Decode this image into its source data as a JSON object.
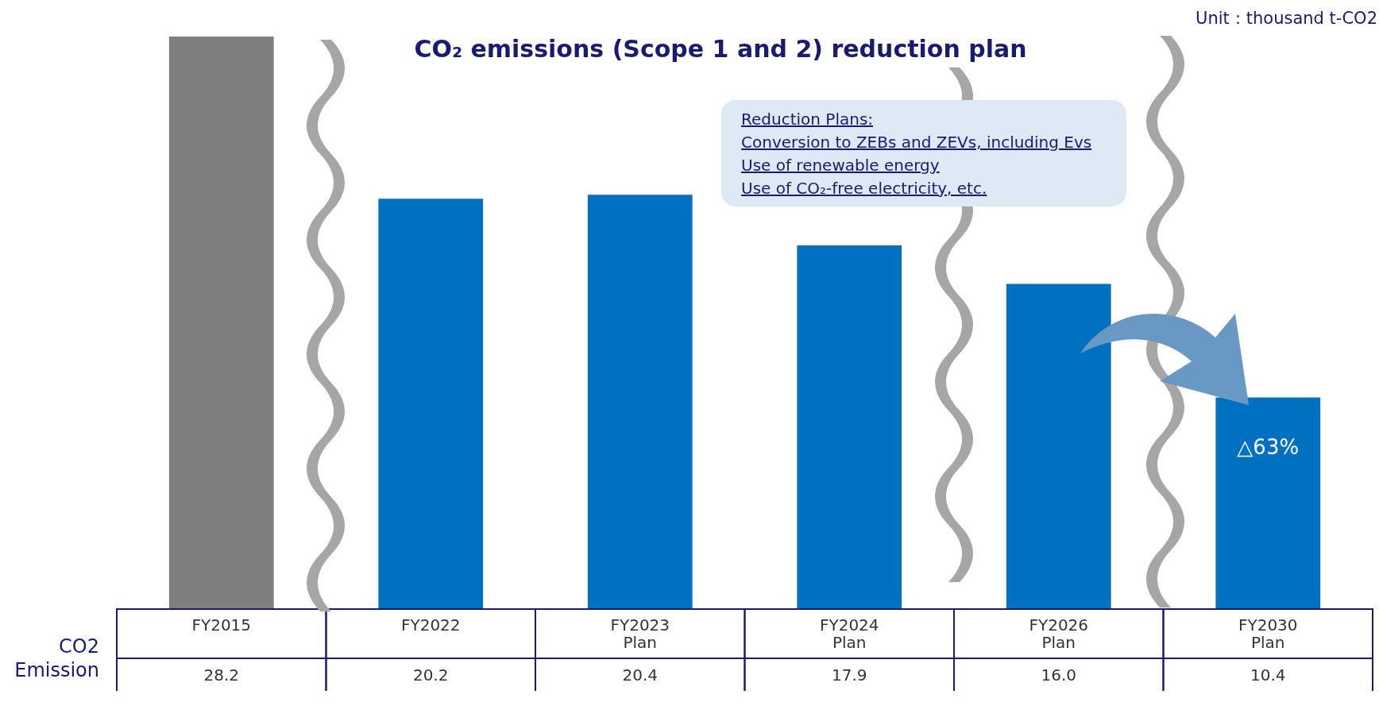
{
  "chart_data": {
    "type": "bar",
    "title": "CO₂ emissions (Scope 1 and 2) reduction plan",
    "ylabel": "CO2 Emission",
    "categories": [
      "FY2015",
      "FY2022",
      "FY2023 Plan",
      "FY2024 Plan",
      "FY2026 Plan",
      "FY2030 Plan"
    ],
    "values": [
      28.2,
      20.2,
      20.4,
      17.9,
      16.0,
      10.4
    ],
    "value_labels": [
      "28.2",
      "20.2",
      "20.4",
      "17.9",
      "16.0",
      "10.4"
    ],
    "colors": [
      "#7f7f7f",
      "#0070c0",
      "#0070c0",
      "#0070c0",
      "#0070c0",
      "#0070c0"
    ],
    "annotations": [
      "Unit：thousand t-CO2",
      "Reduction Plans:",
      "Conversion to ZEBs and ZEVs, including Evs",
      "Use of renewable energy",
      "Use of CO₂-free electricity, etc.",
      "△63%"
    ]
  }
}
